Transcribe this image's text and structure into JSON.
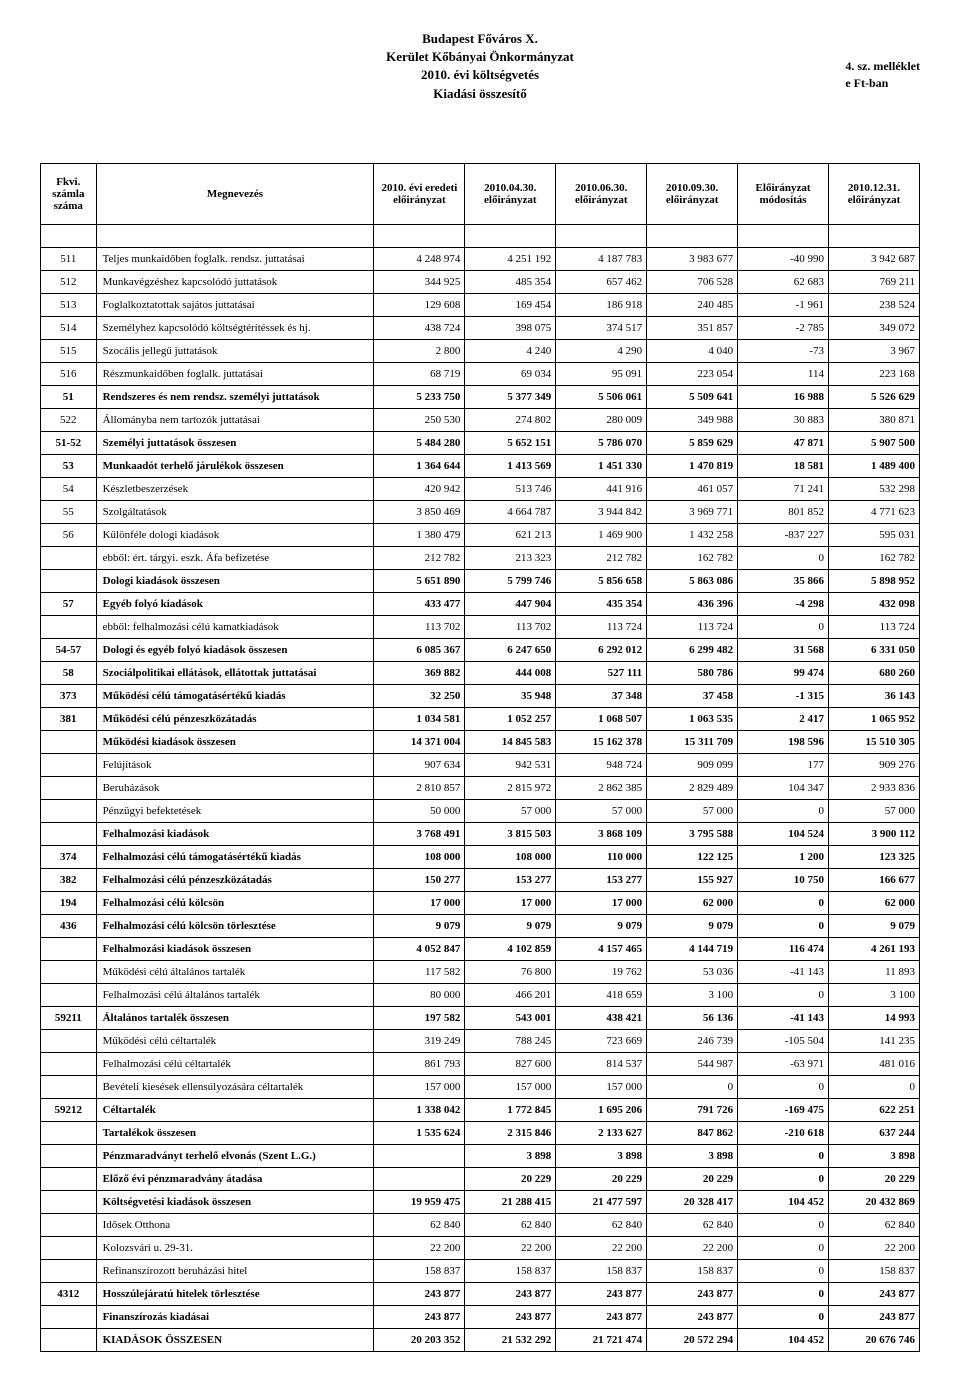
{
  "header": {
    "line1": "Budapest Főváros X.",
    "line2": "Kerület Kőbányai Önkormányzat",
    "line3": "2010. évi költségvetés",
    "line4": "Kiadási összesítő",
    "right1": "4. sz. melléklet",
    "right2": "e Ft-ban"
  },
  "columns": [
    "Fkvi. számla száma",
    "Megnevezés",
    "2010. évi eredeti előirányzat",
    "2010.04.30. előirányzat",
    "2010.06.30. előirányzat",
    "2010.09.30. előirányzat",
    "Előirányzat módosítás",
    "2010.12.31. előirányzat"
  ],
  "rows": [
    {
      "id": "511",
      "name": "Teljes munkaidőben foglalk. rendsz. juttatásai",
      "v": [
        "4 248 974",
        "4 251 192",
        "4 187 783",
        "3 983 677",
        "-40 990",
        "3 942 687"
      ],
      "bold": false
    },
    {
      "id": "512",
      "name": "Munkavégzéshez kapcsolódó juttatások",
      "v": [
        "344 925",
        "485 354",
        "657 462",
        "706 528",
        "62 683",
        "769 211"
      ],
      "bold": false
    },
    {
      "id": "513",
      "name": "Foglalkoztatottak sajátos juttatásai",
      "v": [
        "129 608",
        "169 454",
        "186 918",
        "240 485",
        "-1 961",
        "238 524"
      ],
      "bold": false
    },
    {
      "id": "514",
      "name": "Személyhez kapcsolódó költségtérítéssek és hj.",
      "v": [
        "438 724",
        "398 075",
        "374 517",
        "351 857",
        "-2 785",
        "349 072"
      ],
      "bold": false
    },
    {
      "id": "515",
      "name": "Szocális jellegű juttatások",
      "v": [
        "2 800",
        "4 240",
        "4 290",
        "4 040",
        "-73",
        "3 967"
      ],
      "bold": false
    },
    {
      "id": "516",
      "name": "Részmunkaidőben foglalk. juttatásai",
      "v": [
        "68 719",
        "69 034",
        "95 091",
        "223 054",
        "114",
        "223 168"
      ],
      "bold": false
    },
    {
      "id": "51",
      "name": "Rendszeres és nem rendsz. személyi juttatások",
      "v": [
        "5 233 750",
        "5 377 349",
        "5 506 061",
        "5 509 641",
        "16 988",
        "5 526 629"
      ],
      "bold": true
    },
    {
      "id": "522",
      "name": "Állományba nem tartozók juttatásai",
      "v": [
        "250 530",
        "274 802",
        "280 009",
        "349 988",
        "30 883",
        "380 871"
      ],
      "bold": false
    },
    {
      "id": "51-52",
      "name": "Személyi juttatások összesen",
      "v": [
        "5 484 280",
        "5 652 151",
        "5 786 070",
        "5 859 629",
        "47 871",
        "5 907 500"
      ],
      "bold": true
    },
    {
      "id": "53",
      "name": "Munkaadót terhelő járulékok összesen",
      "v": [
        "1 364 644",
        "1 413 569",
        "1 451 330",
        "1 470 819",
        "18 581",
        "1 489 400"
      ],
      "bold": true
    },
    {
      "id": "54",
      "name": "Készletbeszerzések",
      "v": [
        "420 942",
        "513 746",
        "441 916",
        "461 057",
        "71 241",
        "532 298"
      ],
      "bold": false
    },
    {
      "id": "55",
      "name": "Szolgáltatások",
      "v": [
        "3 850 469",
        "4 664 787",
        "3 944 842",
        "3 969 771",
        "801 852",
        "4 771 623"
      ],
      "bold": false
    },
    {
      "id": "56",
      "name": "Különféle dologi kiadások",
      "v": [
        "1 380 479",
        "621 213",
        "1 469 900",
        "1 432 258",
        "-837 227",
        "595 031"
      ],
      "bold": false
    },
    {
      "id": "",
      "name": "ebből: ért. tárgyi. eszk. Áfa befizetése",
      "v": [
        "212 782",
        "213 323",
        "212 782",
        "162 782",
        "0",
        "162 782"
      ],
      "bold": false
    },
    {
      "id": "",
      "name": "Dologi kiadások összesen",
      "v": [
        "5 651 890",
        "5 799 746",
        "5 856 658",
        "5 863 086",
        "35 866",
        "5 898 952"
      ],
      "bold": true
    },
    {
      "id": "57",
      "name": "Egyéb folyó kiadások",
      "v": [
        "433 477",
        "447 904",
        "435 354",
        "436 396",
        "-4 298",
        "432 098"
      ],
      "bold": true
    },
    {
      "id": "",
      "name": "ebből: felhalmozási célú kamatkiadások",
      "v": [
        "113 702",
        "113 702",
        "113 724",
        "113 724",
        "0",
        "113 724"
      ],
      "bold": false
    },
    {
      "id": "54-57",
      "name": "Dologi és egyéb folyó kiadások összesen",
      "v": [
        "6 085 367",
        "6 247 650",
        "6 292 012",
        "6 299 482",
        "31 568",
        "6 331 050"
      ],
      "bold": true
    },
    {
      "id": "58",
      "name": "Szociálpolitikai ellátások, ellátottak juttatásai",
      "v": [
        "369 882",
        "444 008",
        "527 111",
        "580 786",
        "99 474",
        "680 260"
      ],
      "bold": true
    },
    {
      "id": "373",
      "name": "Működési célú támogatásértékű kiadás",
      "v": [
        "32 250",
        "35 948",
        "37 348",
        "37 458",
        "-1 315",
        "36 143"
      ],
      "bold": true
    },
    {
      "id": "381",
      "name": "Működési célú pénzeszközátadás",
      "v": [
        "1 034 581",
        "1 052 257",
        "1 068 507",
        "1 063 535",
        "2 417",
        "1 065 952"
      ],
      "bold": true
    },
    {
      "id": "",
      "name": "Működési kiadások összesen",
      "v": [
        "14 371 004",
        "14 845 583",
        "15 162 378",
        "15 311 709",
        "198 596",
        "15 510 305"
      ],
      "bold": true
    },
    {
      "id": "",
      "name": "Felújítások",
      "v": [
        "907 634",
        "942 531",
        "948 724",
        "909 099",
        "177",
        "909 276"
      ],
      "bold": false
    },
    {
      "id": "",
      "name": "Beruházások",
      "v": [
        "2 810 857",
        "2 815 972",
        "2 862 385",
        "2 829 489",
        "104 347",
        "2 933 836"
      ],
      "bold": false
    },
    {
      "id": "",
      "name": "Pénzügyi befektetések",
      "v": [
        "50 000",
        "57 000",
        "57 000",
        "57 000",
        "0",
        "57 000"
      ],
      "bold": false
    },
    {
      "id": "",
      "name": "Felhalmozási kiadások",
      "v": [
        "3 768 491",
        "3 815 503",
        "3 868 109",
        "3 795 588",
        "104 524",
        "3 900 112"
      ],
      "bold": true
    },
    {
      "id": "374",
      "name": "Felhalmozási célú támogatásértékű kiadás",
      "v": [
        "108 000",
        "108 000",
        "110 000",
        "122 125",
        "1 200",
        "123 325"
      ],
      "bold": true
    },
    {
      "id": "382",
      "name": "Felhalmozási  célú pénzeszközátadás",
      "v": [
        "150 277",
        "153 277",
        "153 277",
        "155 927",
        "10 750",
        "166 677"
      ],
      "bold": true
    },
    {
      "id": "194",
      "name": "Felhalmozási célú kölcsön",
      "v": [
        "17 000",
        "17 000",
        "17 000",
        "62 000",
        "0",
        "62 000"
      ],
      "bold": true
    },
    {
      "id": "436",
      "name": "Felhalmozási célú kölcsön törlesztése",
      "v": [
        "9 079",
        "9 079",
        "9 079",
        "9 079",
        "0",
        "9 079"
      ],
      "bold": true
    },
    {
      "id": "",
      "name": "Felhalmozási kiadások összesen",
      "v": [
        "4 052 847",
        "4 102 859",
        "4 157 465",
        "4 144 719",
        "116 474",
        "4 261 193"
      ],
      "bold": true
    },
    {
      "id": "",
      "name": "Működési célú általános tartalék",
      "v": [
        "117 582",
        "76 800",
        "19 762",
        "53 036",
        "-41 143",
        "11 893"
      ],
      "bold": false
    },
    {
      "id": "",
      "name": "Felhalmozási célú általános tartalék",
      "v": [
        "80 000",
        "466 201",
        "418 659",
        "3 100",
        "0",
        "3 100"
      ],
      "bold": false
    },
    {
      "id": "59211",
      "name": "Általános tartalék összesen",
      "v": [
        "197 582",
        "543 001",
        "438 421",
        "56 136",
        "-41 143",
        "14 993"
      ],
      "bold": true
    },
    {
      "id": "",
      "name": "Működési célú céltartalék",
      "v": [
        "319 249",
        "788 245",
        "723 669",
        "246 739",
        "-105 504",
        "141 235"
      ],
      "bold": false
    },
    {
      "id": "",
      "name": "Felhalmozási célú céltartalék",
      "v": [
        "861 793",
        "827 600",
        "814 537",
        "544 987",
        "-63 971",
        "481 016"
      ],
      "bold": false
    },
    {
      "id": "",
      "name": "Bevételi kiesések ellensúlyozására céltartalék",
      "v": [
        "157 000",
        "157 000",
        "157 000",
        "0",
        "0",
        "0"
      ],
      "bold": false
    },
    {
      "id": "59212",
      "name": "Céltartalék",
      "v": [
        "1 338 042",
        "1 772 845",
        "1 695 206",
        "791 726",
        "-169 475",
        "622 251"
      ],
      "bold": true
    },
    {
      "id": "",
      "name": "Tartalékok összesen",
      "v": [
        "1 535 624",
        "2 315 846",
        "2 133 627",
        "847 862",
        "-210 618",
        "637 244"
      ],
      "bold": true
    },
    {
      "id": "",
      "name": "Pénzmaradványt terhelő elvonás (Szent L.G.)",
      "v": [
        "",
        "3 898",
        "3 898",
        "3 898",
        "0",
        "3 898"
      ],
      "bold": true
    },
    {
      "id": "",
      "name": "Előző évi pénzmaradvány átadása",
      "v": [
        "",
        "20 229",
        "20 229",
        "20 229",
        "0",
        "20 229"
      ],
      "bold": true
    },
    {
      "id": "",
      "name": "Költségvetési kiadások összesen",
      "v": [
        "19 959 475",
        "21 288 415",
        "21 477 597",
        "20 328 417",
        "104 452",
        "20 432 869"
      ],
      "bold": true
    },
    {
      "id": "",
      "name": "Idősek Otthona",
      "v": [
        "62 840",
        "62 840",
        "62 840",
        "62 840",
        "0",
        "62 840"
      ],
      "bold": false
    },
    {
      "id": "",
      "name": "Kolozsvári u. 29-31.",
      "v": [
        "22 200",
        "22 200",
        "22 200",
        "22 200",
        "0",
        "22 200"
      ],
      "bold": false
    },
    {
      "id": "",
      "name": "Refinanszírozott beruházási hitel",
      "v": [
        "158 837",
        "158 837",
        "158 837",
        "158 837",
        "0",
        "158 837"
      ],
      "bold": false
    },
    {
      "id": "4312",
      "name": "Hosszúlejáratú hitelek törlesztése",
      "v": [
        "243 877",
        "243 877",
        "243 877",
        "243 877",
        "0",
        "243 877"
      ],
      "bold": true
    },
    {
      "id": "",
      "name": "Finanszírozás kiadásai",
      "v": [
        "243 877",
        "243 877",
        "243 877",
        "243 877",
        "0",
        "243 877"
      ],
      "bold": true
    },
    {
      "id": "",
      "name": "KIADÁSOK ÖSSZESEN",
      "v": [
        "20 203 352",
        "21 532 292",
        "21 721 474",
        "20 572 294",
        "104 452",
        "20 676 746"
      ],
      "bold": true
    }
  ]
}
